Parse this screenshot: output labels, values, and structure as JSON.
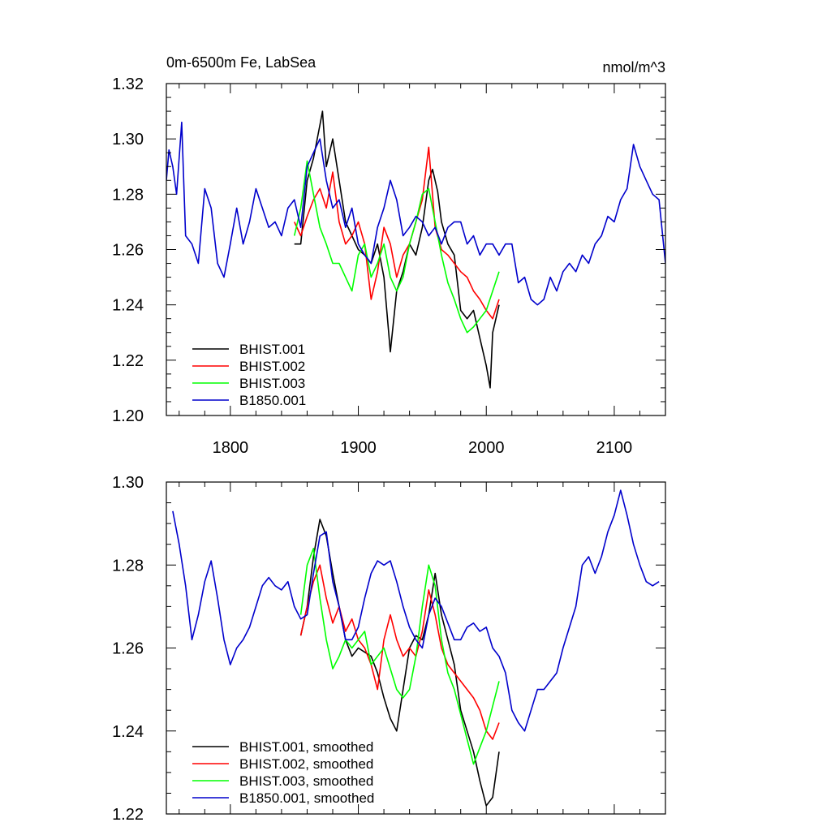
{
  "chart_data": [
    {
      "type": "line",
      "title": "0m-6500m Fe, LabSea",
      "units_label": "nmol/m^3",
      "xlabel": "",
      "ylabel": "",
      "xlim": [
        1750,
        2140
      ],
      "ylim": [
        1.2,
        1.32
      ],
      "xticks": [
        1800,
        1900,
        2000,
        2100
      ],
      "xtick_labels": [
        "1800",
        "1900",
        "2000",
        "2100"
      ],
      "yticks": [
        1.2,
        1.22,
        1.24,
        1.26,
        1.28,
        1.3,
        1.32
      ],
      "ytick_labels": [
        "1.20",
        "1.22",
        "1.24",
        "1.26",
        "1.28",
        "1.30",
        "1.32"
      ],
      "grid": false,
      "legend_position": "bottom-left",
      "series": [
        {
          "name": "BHIST.001",
          "color": "#000000",
          "x": [
            1850,
            1855,
            1860,
            1865,
            1870,
            1872,
            1875,
            1880,
            1885,
            1890,
            1895,
            1900,
            1905,
            1910,
            1915,
            1920,
            1925,
            1930,
            1935,
            1940,
            1945,
            1950,
            1955,
            1958,
            1962,
            1965,
            1970,
            1975,
            1980,
            1985,
            1990,
            1995,
            2000,
            2003,
            2005,
            2010
          ],
          "values": [
            1.262,
            1.262,
            1.285,
            1.293,
            1.305,
            1.31,
            1.29,
            1.3,
            1.285,
            1.27,
            1.265,
            1.26,
            1.258,
            1.255,
            1.262,
            1.25,
            1.223,
            1.245,
            1.252,
            1.262,
            1.258,
            1.268,
            1.285,
            1.289,
            1.281,
            1.27,
            1.262,
            1.258,
            1.238,
            1.235,
            1.238,
            1.228,
            1.218,
            1.21,
            1.23,
            1.24
          ]
        },
        {
          "name": "BHIST.002",
          "color": "#ff0000",
          "x": [
            1850,
            1855,
            1860,
            1865,
            1870,
            1875,
            1880,
            1885,
            1890,
            1895,
            1900,
            1905,
            1910,
            1915,
            1920,
            1925,
            1930,
            1935,
            1940,
            1945,
            1950,
            1955,
            1960,
            1965,
            1970,
            1975,
            1980,
            1985,
            1990,
            1995,
            2000,
            2005,
            2010
          ],
          "values": [
            1.27,
            1.265,
            1.272,
            1.278,
            1.282,
            1.275,
            1.288,
            1.27,
            1.262,
            1.265,
            1.27,
            1.262,
            1.242,
            1.252,
            1.268,
            1.262,
            1.25,
            1.258,
            1.262,
            1.27,
            1.278,
            1.297,
            1.268,
            1.26,
            1.258,
            1.255,
            1.252,
            1.25,
            1.245,
            1.242,
            1.238,
            1.235,
            1.242
          ]
        },
        {
          "name": "BHIST.003",
          "color": "#00ff00",
          "x": [
            1850,
            1855,
            1860,
            1865,
            1870,
            1875,
            1880,
            1885,
            1890,
            1895,
            1900,
            1905,
            1910,
            1915,
            1920,
            1925,
            1930,
            1935,
            1940,
            1945,
            1950,
            1955,
            1960,
            1965,
            1970,
            1975,
            1980,
            1985,
            1990,
            1995,
            2000,
            2005,
            2010
          ],
          "values": [
            1.265,
            1.275,
            1.292,
            1.28,
            1.268,
            1.262,
            1.255,
            1.255,
            1.25,
            1.245,
            1.258,
            1.262,
            1.25,
            1.255,
            1.262,
            1.25,
            1.245,
            1.25,
            1.262,
            1.27,
            1.28,
            1.282,
            1.27,
            1.258,
            1.248,
            1.242,
            1.235,
            1.23,
            1.232,
            1.235,
            1.238,
            1.245,
            1.252
          ]
        },
        {
          "name": "B1850.001",
          "color": "#0000cc",
          "x": [
            1750,
            1752,
            1755,
            1758,
            1762,
            1765,
            1770,
            1775,
            1780,
            1785,
            1790,
            1795,
            1800,
            1805,
            1810,
            1815,
            1820,
            1825,
            1830,
            1835,
            1840,
            1845,
            1850,
            1855,
            1860,
            1865,
            1870,
            1875,
            1880,
            1885,
            1890,
            1895,
            1900,
            1905,
            1910,
            1915,
            1920,
            1925,
            1930,
            1935,
            1940,
            1945,
            1950,
            1955,
            1960,
            1965,
            1970,
            1975,
            1980,
            1985,
            1990,
            1995,
            2000,
            2005,
            2010,
            2015,
            2020,
            2025,
            2030,
            2035,
            2040,
            2045,
            2050,
            2055,
            2060,
            2065,
            2070,
            2075,
            2080,
            2085,
            2090,
            2095,
            2100,
            2105,
            2110,
            2115,
            2120,
            2125,
            2130,
            2135,
            2140
          ],
          "values": [
            1.285,
            1.296,
            1.29,
            1.28,
            1.306,
            1.265,
            1.262,
            1.255,
            1.282,
            1.275,
            1.255,
            1.25,
            1.262,
            1.275,
            1.262,
            1.27,
            1.282,
            1.275,
            1.268,
            1.27,
            1.265,
            1.275,
            1.278,
            1.268,
            1.29,
            1.295,
            1.3,
            1.285,
            1.275,
            1.278,
            1.268,
            1.275,
            1.262,
            1.258,
            1.255,
            1.268,
            1.275,
            1.285,
            1.278,
            1.265,
            1.268,
            1.272,
            1.27,
            1.265,
            1.268,
            1.262,
            1.268,
            1.27,
            1.27,
            1.262,
            1.265,
            1.258,
            1.262,
            1.262,
            1.258,
            1.262,
            1.262,
            1.248,
            1.25,
            1.242,
            1.24,
            1.242,
            1.25,
            1.245,
            1.252,
            1.255,
            1.252,
            1.258,
            1.255,
            1.262,
            1.265,
            1.272,
            1.27,
            1.278,
            1.282,
            1.298,
            1.29,
            1.285,
            1.28,
            1.278,
            1.255
          ]
        }
      ]
    },
    {
      "type": "line",
      "title": "",
      "xlabel": "",
      "ylabel": "",
      "xlim": [
        1750,
        2140
      ],
      "ylim": [
        1.22,
        1.3
      ],
      "xticks": [
        1800,
        1900,
        2000,
        2100
      ],
      "yticks": [
        1.22,
        1.24,
        1.26,
        1.28,
        1.3
      ],
      "ytick_labels": [
        "1.22",
        "1.24",
        "1.26",
        "1.28",
        "1.30"
      ],
      "grid": false,
      "legend_position": "bottom-left",
      "series": [
        {
          "name": "BHIST.001, smoothed",
          "color": "#000000",
          "x": [
            1855,
            1860,
            1865,
            1870,
            1875,
            1880,
            1885,
            1890,
            1895,
            1900,
            1905,
            1910,
            1915,
            1920,
            1925,
            1930,
            1935,
            1940,
            1945,
            1950,
            1955,
            1960,
            1965,
            1970,
            1975,
            1980,
            1985,
            1990,
            1995,
            2000,
            2005,
            2010
          ],
          "values": [
            1.263,
            1.27,
            1.282,
            1.291,
            1.287,
            1.278,
            1.27,
            1.262,
            1.258,
            1.26,
            1.259,
            1.258,
            1.254,
            1.248,
            1.243,
            1.24,
            1.25,
            1.26,
            1.263,
            1.262,
            1.268,
            1.278,
            1.268,
            1.262,
            1.256,
            1.245,
            1.24,
            1.235,
            1.228,
            1.222,
            1.224,
            1.235
          ]
        },
        {
          "name": "BHIST.002, smoothed",
          "color": "#ff0000",
          "x": [
            1855,
            1860,
            1865,
            1870,
            1875,
            1880,
            1885,
            1890,
            1895,
            1900,
            1905,
            1910,
            1915,
            1920,
            1925,
            1930,
            1935,
            1940,
            1945,
            1950,
            1955,
            1960,
            1965,
            1970,
            1975,
            1980,
            1985,
            1990,
            1995,
            2000,
            2005,
            2010
          ],
          "values": [
            1.263,
            1.27,
            1.276,
            1.28,
            1.272,
            1.266,
            1.27,
            1.264,
            1.267,
            1.262,
            1.26,
            1.256,
            1.25,
            1.262,
            1.268,
            1.262,
            1.258,
            1.26,
            1.258,
            1.264,
            1.274,
            1.268,
            1.26,
            1.256,
            1.254,
            1.252,
            1.25,
            1.248,
            1.245,
            1.24,
            1.238,
            1.242
          ]
        },
        {
          "name": "BHIST.003, smoothed",
          "color": "#00ff00",
          "x": [
            1855,
            1860,
            1865,
            1870,
            1875,
            1880,
            1885,
            1890,
            1895,
            1900,
            1905,
            1910,
            1915,
            1920,
            1925,
            1930,
            1935,
            1940,
            1945,
            1950,
            1955,
            1960,
            1965,
            1970,
            1975,
            1980,
            1985,
            1990,
            1995,
            2000,
            2005,
            2010
          ],
          "values": [
            1.268,
            1.28,
            1.284,
            1.272,
            1.262,
            1.255,
            1.258,
            1.262,
            1.26,
            1.262,
            1.264,
            1.256,
            1.258,
            1.26,
            1.255,
            1.25,
            1.248,
            1.25,
            1.258,
            1.27,
            1.28,
            1.275,
            1.262,
            1.254,
            1.25,
            1.244,
            1.238,
            1.232,
            1.236,
            1.24,
            1.246,
            1.252
          ]
        },
        {
          "name": "B1850.001, smoothed",
          "color": "#0000cc",
          "x": [
            1755,
            1760,
            1765,
            1770,
            1775,
            1780,
            1785,
            1790,
            1795,
            1800,
            1805,
            1810,
            1815,
            1820,
            1825,
            1830,
            1835,
            1840,
            1845,
            1850,
            1855,
            1860,
            1865,
            1870,
            1875,
            1880,
            1885,
            1890,
            1895,
            1900,
            1905,
            1910,
            1915,
            1920,
            1925,
            1930,
            1935,
            1940,
            1945,
            1950,
            1955,
            1960,
            1965,
            1970,
            1975,
            1980,
            1985,
            1990,
            1995,
            2000,
            2005,
            2010,
            2015,
            2020,
            2025,
            2030,
            2035,
            2040,
            2045,
            2050,
            2055,
            2060,
            2065,
            2070,
            2075,
            2080,
            2085,
            2090,
            2095,
            2100,
            2105,
            2110,
            2115,
            2120,
            2125,
            2130,
            2135
          ],
          "values": [
            1.293,
            1.285,
            1.275,
            1.262,
            1.268,
            1.276,
            1.281,
            1.272,
            1.262,
            1.256,
            1.26,
            1.262,
            1.265,
            1.27,
            1.275,
            1.277,
            1.275,
            1.274,
            1.276,
            1.27,
            1.267,
            1.268,
            1.278,
            1.287,
            1.288,
            1.276,
            1.27,
            1.262,
            1.262,
            1.265,
            1.272,
            1.278,
            1.281,
            1.28,
            1.281,
            1.276,
            1.27,
            1.265,
            1.262,
            1.26,
            1.268,
            1.272,
            1.27,
            1.266,
            1.262,
            1.262,
            1.265,
            1.266,
            1.264,
            1.265,
            1.26,
            1.258,
            1.254,
            1.245,
            1.242,
            1.24,
            1.245,
            1.25,
            1.25,
            1.252,
            1.254,
            1.26,
            1.265,
            1.27,
            1.28,
            1.282,
            1.278,
            1.282,
            1.288,
            1.292,
            1.298,
            1.292,
            1.285,
            1.28,
            1.276,
            1.275,
            1.276
          ]
        }
      ]
    }
  ]
}
